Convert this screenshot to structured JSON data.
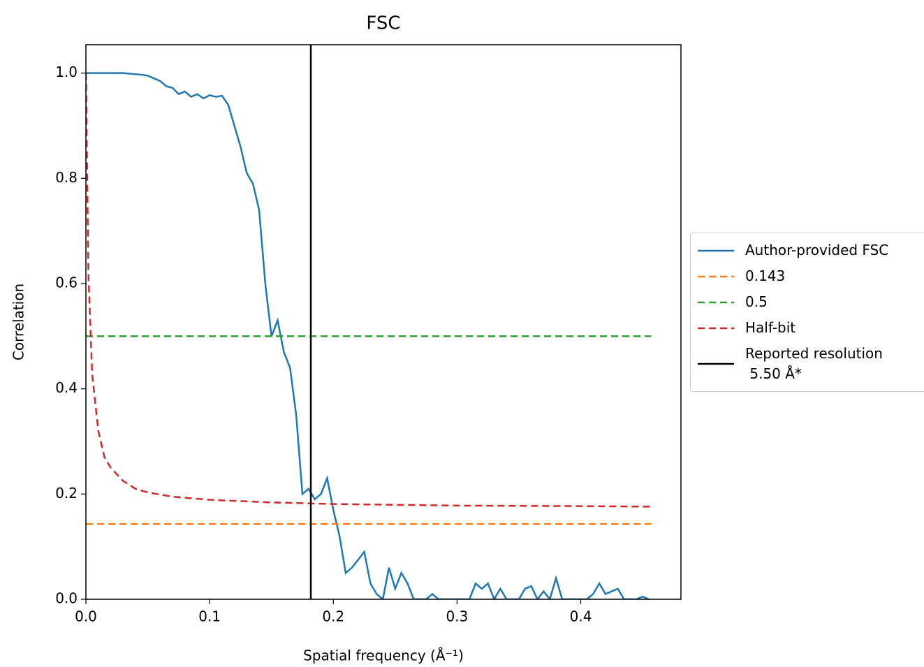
{
  "chart_data": {
    "type": "line",
    "title": "FSC",
    "xlabel": "Spatial frequency (Å⁻¹)",
    "ylabel": "Correlation",
    "xlim": [
      0,
      0.481
    ],
    "ylim": [
      0,
      1.054
    ],
    "xticks": [
      {
        "value": 0,
        "label": "0.0"
      },
      0.1,
      0.2,
      0.3,
      0.4
    ],
    "yticks": [
      {
        "value": 0,
        "label": "0.0"
      },
      0.2,
      0.4,
      0.6,
      0.8,
      {
        "value": 1,
        "label": "1.0"
      }
    ],
    "series": [
      {
        "name": "Author-provided FSC",
        "color": "#1f77b4",
        "dash": "solid",
        "x": [
          0,
          0.005,
          0.01,
          0.015,
          0.02,
          0.025,
          0.03,
          0.035,
          0.04,
          0.045,
          0.05,
          0.055,
          0.06,
          0.065,
          0.07,
          0.075,
          0.08,
          0.085,
          0.09,
          0.095,
          0.1,
          0.105,
          0.11,
          0.115,
          0.12,
          0.125,
          0.13,
          0.135,
          0.14,
          0.145,
          0.15,
          0.155,
          0.16,
          0.165,
          0.17,
          0.175,
          0.18,
          0.185,
          0.19,
          0.195,
          0.2,
          0.205,
          0.21,
          0.215,
          0.22,
          0.225,
          0.23,
          0.235,
          0.24,
          0.245,
          0.25,
          0.255,
          0.26,
          0.265,
          0.27,
          0.275,
          0.28,
          0.285,
          0.29,
          0.295,
          0.3,
          0.305,
          0.31,
          0.315,
          0.32,
          0.325,
          0.33,
          0.335,
          0.34,
          0.345,
          0.35,
          0.355,
          0.36,
          0.365,
          0.37,
          0.375,
          0.38,
          0.385,
          0.39,
          0.395,
          0.4,
          0.405,
          0.41,
          0.415,
          0.42,
          0.425,
          0.43,
          0.435,
          0.44,
          0.445,
          0.45,
          0.455
        ],
        "values": [
          1.0,
          1.0,
          1.0,
          1.0,
          1.0,
          1.0,
          1.0,
          0.999,
          0.998,
          0.997,
          0.995,
          0.99,
          0.985,
          0.975,
          0.972,
          0.96,
          0.965,
          0.955,
          0.96,
          0.952,
          0.958,
          0.955,
          0.957,
          0.94,
          0.9,
          0.86,
          0.81,
          0.79,
          0.74,
          0.6,
          0.5,
          0.53,
          0.47,
          0.44,
          0.35,
          0.2,
          0.21,
          0.19,
          0.2,
          0.23,
          0.17,
          0.12,
          0.05,
          0.06,
          0.075,
          0.09,
          0.03,
          0.01,
          0.0,
          0.06,
          0.02,
          0.05,
          0.03,
          0.0,
          0.0,
          0.0,
          0.01,
          0.0,
          0.0,
          0.0,
          0.0,
          0.0,
          0.0,
          0.03,
          0.02,
          0.03,
          0.0,
          0.02,
          0.0,
          0.0,
          0.0,
          0.02,
          0.025,
          0.0,
          0.015,
          0.0,
          0.04,
          0.0,
          0.0,
          0.0,
          0.0,
          0.0,
          0.01,
          0.03,
          0.01,
          0.015,
          0.02,
          0.0,
          0.0,
          0.0,
          0.005,
          0.0
        ]
      },
      {
        "name": "0.143",
        "color": "#ff7f0e",
        "dash": "dashed",
        "x": [
          0,
          0.457
        ],
        "values": [
          0.143,
          0.143
        ]
      },
      {
        "name": "0.5",
        "color": "#2ca02c",
        "dash": "dashed",
        "x": [
          0,
          0.457
        ],
        "values": [
          0.5,
          0.5
        ]
      },
      {
        "name": "Half-bit",
        "color": "#d62728",
        "dash": "dashed",
        "x": [
          0,
          0.002,
          0.005,
          0.01,
          0.015,
          0.02,
          0.03,
          0.04,
          0.05,
          0.07,
          0.1,
          0.15,
          0.2,
          0.3,
          0.4,
          0.457
        ],
        "values": [
          1.0,
          0.62,
          0.43,
          0.32,
          0.27,
          0.25,
          0.225,
          0.21,
          0.203,
          0.195,
          0.189,
          0.184,
          0.181,
          0.178,
          0.177,
          0.176
        ]
      },
      {
        "name": "Reported resolution\n 5.50 Å*",
        "color": "#000000",
        "dash": "vline",
        "x": 0.1818
      }
    ]
  }
}
